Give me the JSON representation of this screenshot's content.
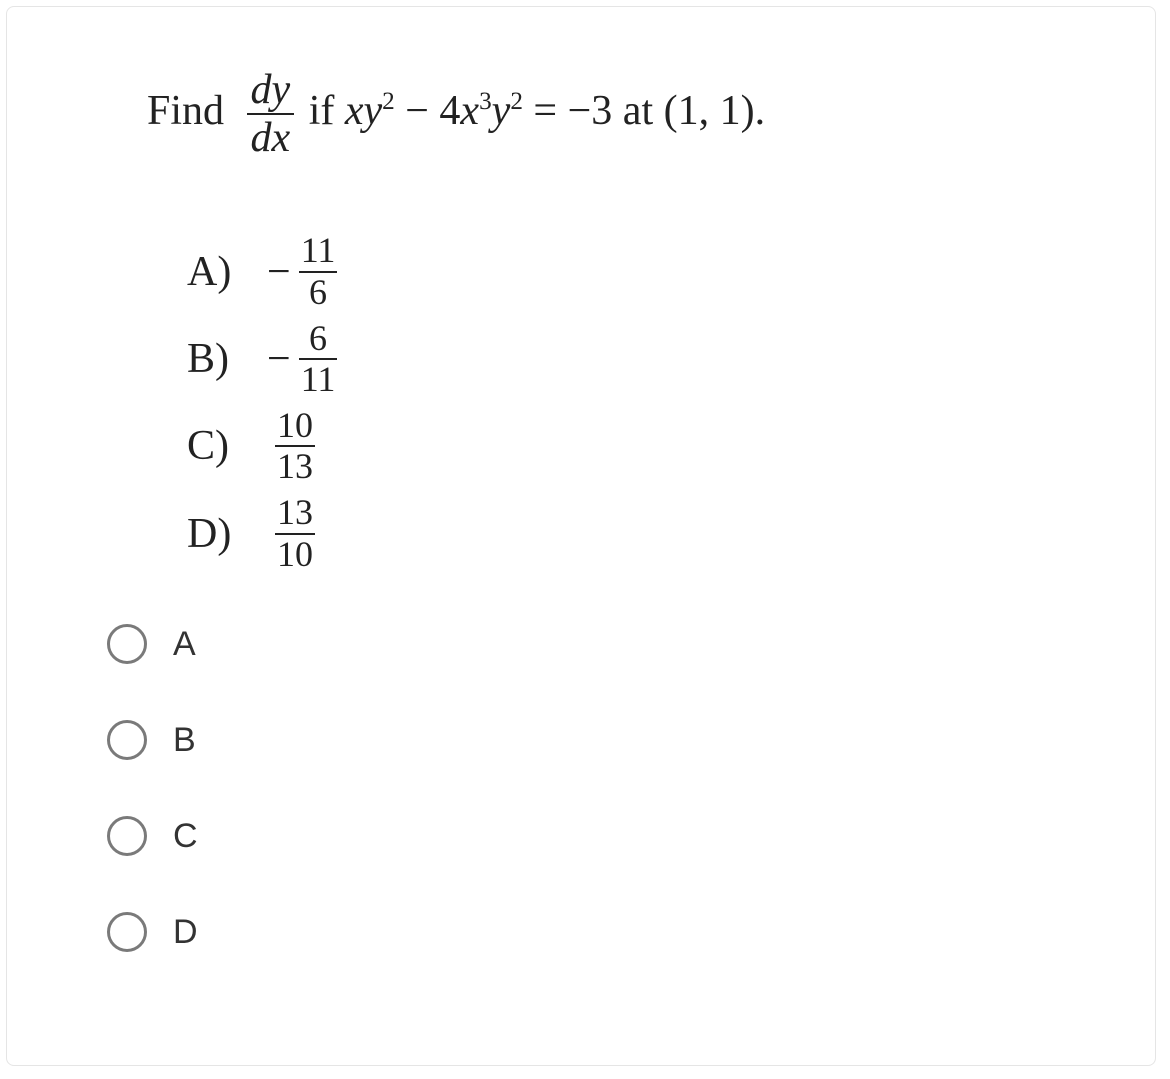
{
  "question": {
    "prefix": "Find",
    "deriv_num": "dy",
    "deriv_den": "dx",
    "middle": " if ",
    "lhs_html": "<span class=\"ital\">xy</span><sup>2</sup> − 4<span class=\"ital\">x</span><sup>3</sup><span class=\"ital\">y</span><sup>2</sup> = −3",
    "suffix": " at (1, 1)."
  },
  "answers": [
    {
      "letter": "A)",
      "sign": "−",
      "num": "11",
      "den": "6"
    },
    {
      "letter": "B)",
      "sign": "−",
      "num": "6",
      "den": "11"
    },
    {
      "letter": "C)",
      "sign": "",
      "num": "10",
      "den": "13"
    },
    {
      "letter": "D)",
      "sign": "",
      "num": "13",
      "den": "10"
    }
  ],
  "options": [
    {
      "label": "A"
    },
    {
      "label": "B"
    },
    {
      "label": "C"
    },
    {
      "label": "D"
    }
  ]
}
